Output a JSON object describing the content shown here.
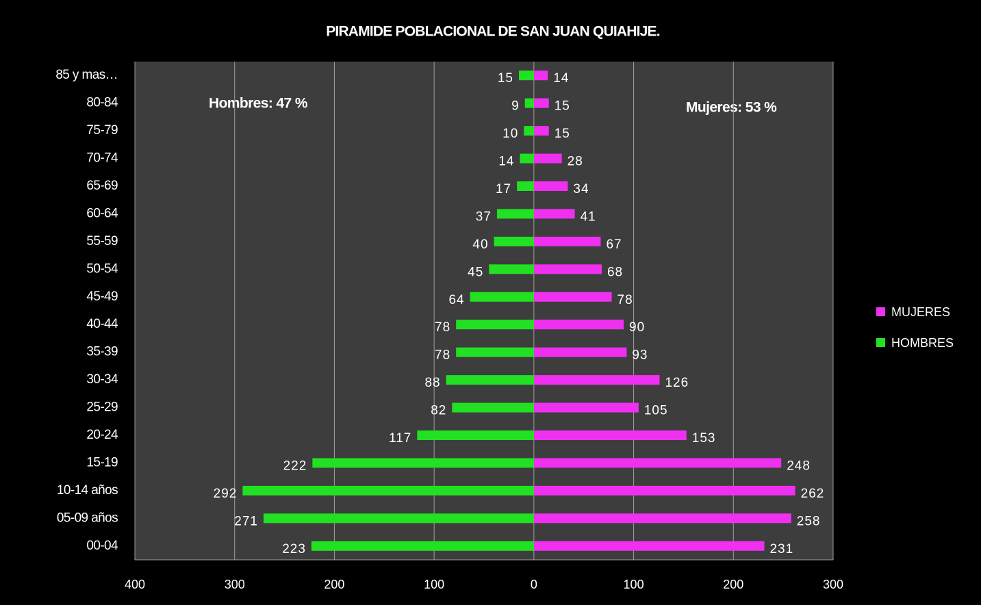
{
  "chart_data": {
    "type": "bar",
    "orientation": "horizontal",
    "title": "PIRAMIDE POBLACIONAL DE SAN JUAN QUIAHIJE.",
    "annotations": [
      "Hombres: 47 %",
      "Mujeres: 53 %"
    ],
    "categories": [
      "00-04",
      "05-09 años",
      "10-14 años",
      "15-19",
      "20-24",
      "25-29",
      "30-34",
      "35-39",
      "40-44",
      "45-49",
      "50-54",
      "55-59",
      "60-64",
      "65-69",
      "70-74",
      "75-79",
      "80-84",
      "85 y mas…"
    ],
    "series": [
      {
        "name": "MUJERES",
        "color": "#f030f0",
        "values": [
          231,
          258,
          262,
          248,
          153,
          105,
          126,
          93,
          90,
          78,
          68,
          67,
          41,
          34,
          28,
          15,
          15,
          14
        ]
      },
      {
        "name": "HOMBRES",
        "color": "#22e022",
        "values": [
          -223,
          -271,
          -292,
          -222,
          -117,
          -82,
          -88,
          -78,
          -78,
          -64,
          -45,
          -40,
          -37,
          -17,
          -14,
          -10,
          -9,
          -15
        ],
        "value_labels": [
          "223",
          "271",
          "292",
          "222",
          "117",
          "82",
          "88",
          "78",
          "78",
          "64",
          "45",
          "40",
          "37",
          "17",
          "14",
          "10",
          "9",
          "15"
        ]
      }
    ],
    "xlim": [
      -400,
      300
    ],
    "xticks": [
      {
        "value": -400,
        "label": "400"
      },
      {
        "value": -300,
        "label": "300"
      },
      {
        "value": -200,
        "label": "200"
      },
      {
        "value": -100,
        "label": "100"
      },
      0,
      100,
      200,
      300
    ],
    "grid": true,
    "legend": "right"
  }
}
